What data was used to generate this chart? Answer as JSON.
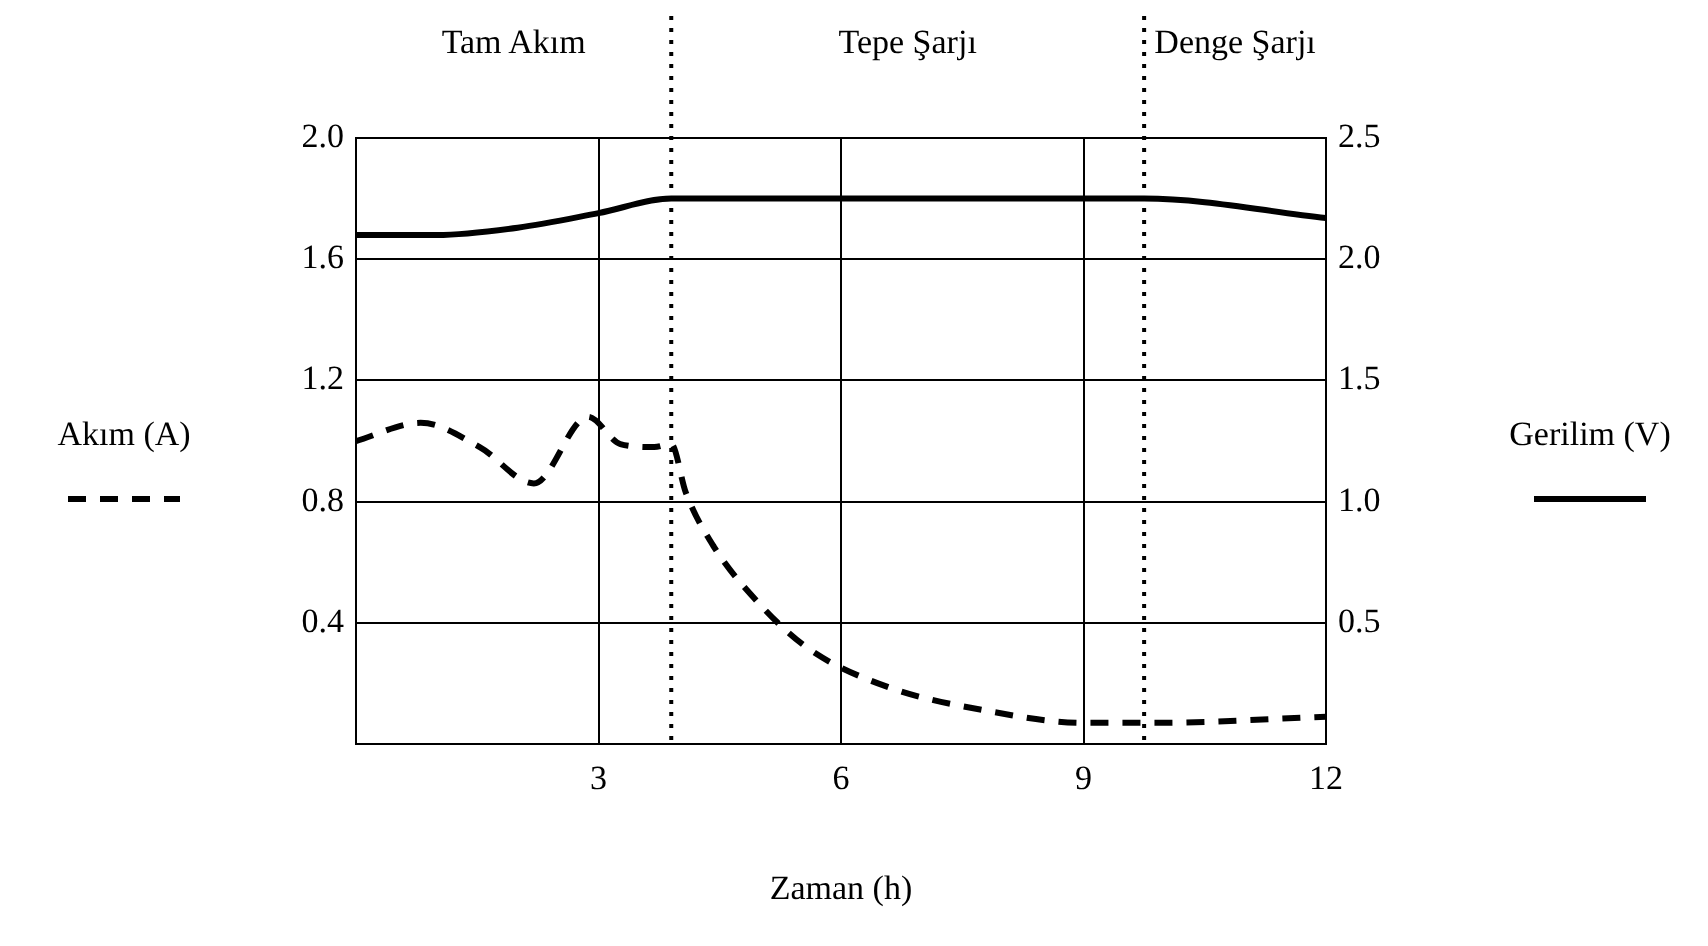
{
  "chart_data": {
    "type": "line",
    "xlabel": "Zaman (h)",
    "x": [
      0,
      1,
      2,
      3,
      3.9,
      9.75,
      12
    ],
    "xlim": [
      0,
      12
    ],
    "xticks": [
      3,
      6,
      9,
      12
    ],
    "ylim": [
      0,
      2.0
    ],
    "yticks": [
      0.4,
      0.8,
      1.2,
      1.6,
      {
        "value": 2,
        "label": "2.0"
      }
    ],
    "y2lim": [
      0,
      2.5
    ],
    "y2ticks": [
      0.5,
      {
        "value": 1,
        "label": "1.0"
      },
      1.5,
      {
        "value": 2,
        "label": "2.0"
      },
      2.5
    ],
    "ylabel": "Akım (A)",
    "y2label": "Gerilim (V)",
    "grid": true,
    "marker": "none",
    "series": [
      {
        "color": "#000000",
        "line_style": "dashed",
        "axis": "y",
        "x": [
          0,
          0.8,
          1.53,
          2.2,
          2.87,
          3.27,
          3.69,
          3.9,
          4.08,
          4.43,
          4.93,
          5.57,
          6.56,
          7.8,
          9,
          9.88,
          12
        ],
        "values": [
          1.0,
          1.06,
          0.98,
          0.86,
          1.08,
          0.99,
          0.98,
          0.99,
          0.83,
          0.65,
          0.48,
          0.32,
          0.19,
          0.11,
          0.07,
          0.07,
          0.09
        ]
      },
      {
        "color": "#000000",
        "line_style": "solid",
        "axis": "y2",
        "values": [
          2.1,
          2.1,
          2.13,
          2.19,
          2.25,
          2.25,
          2.17
        ]
      }
    ],
    "ref_lines": [
      {
        "axis": "x",
        "value": 3.9,
        "color": "#000000",
        "line_style": "dotted"
      },
      {
        "axis": "x",
        "value": 9.75,
        "color": "#000000",
        "line_style": "dotted"
      }
    ],
    "annotations": [
      "Tam Akım",
      "Tepe Şarjı",
      "Denge Şarjı"
    ]
  }
}
